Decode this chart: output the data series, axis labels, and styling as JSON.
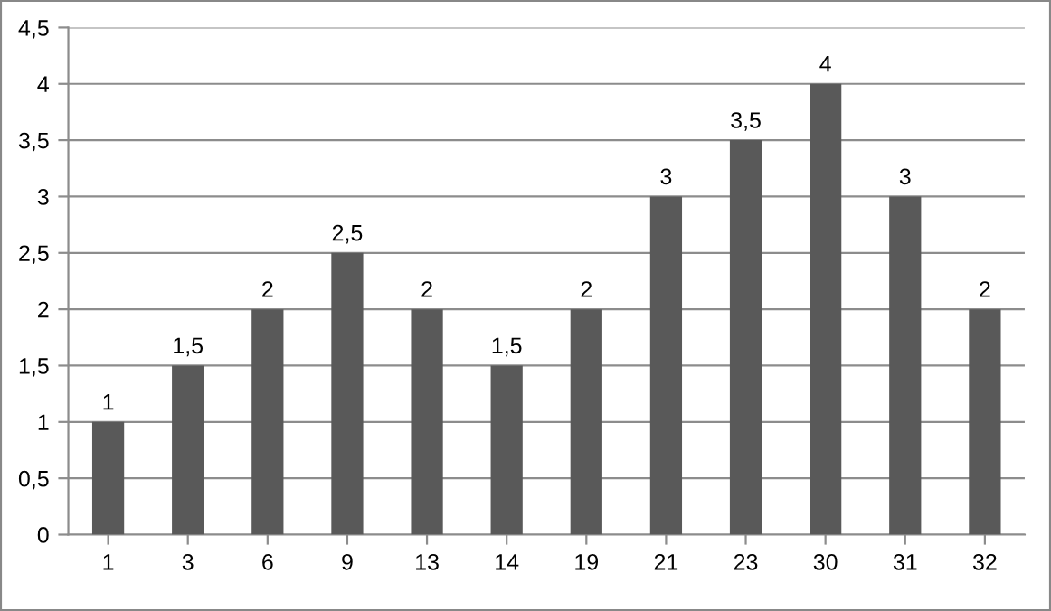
{
  "chart_data": {
    "type": "bar",
    "categories": [
      "1",
      "3",
      "6",
      "9",
      "13",
      "14",
      "19",
      "21",
      "23",
      "30",
      "31",
      "32"
    ],
    "values": [
      1,
      1.5,
      2,
      2.5,
      2,
      1.5,
      2,
      3,
      3.5,
      4,
      3,
      2
    ],
    "value_labels": [
      "1",
      "1,5",
      "2",
      "2,5",
      "2",
      "1,5",
      "2",
      "3",
      "3,5",
      "4",
      "3",
      "2"
    ],
    "color": "#595959",
    "ylim": [
      0,
      4.5
    ],
    "yticks": [
      0,
      {
        "value": 0.5,
        "label": "0,5"
      },
      1,
      {
        "value": 1.5,
        "label": "1,5"
      },
      2,
      {
        "value": 2.5,
        "label": "2,5"
      },
      3,
      {
        "value": 3.5,
        "label": "3,5"
      },
      4,
      {
        "value": 4.5,
        "label": "4,5"
      }
    ],
    "grid": "y"
  }
}
